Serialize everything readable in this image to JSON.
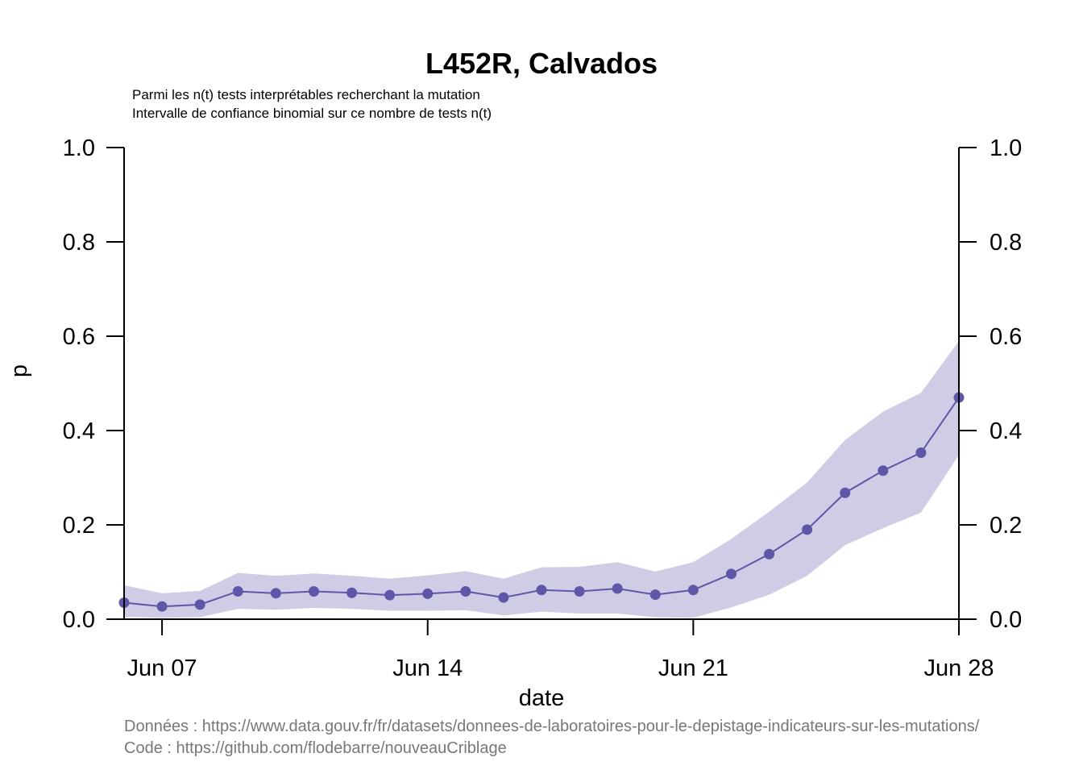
{
  "title": "L452R, Calvados",
  "subtitle_line1": "Parmi les n(t) tests interprétables recherchant la mutation",
  "subtitle_line2": "Intervalle de confiance binomial sur ce nombre de tests n(t)",
  "credit_line1": "Données : https://www.data.gouv.fr/fr/datasets/donnees-de-laboratoires-pour-le-depistage-indicateurs-sur-les-mutations/",
  "credit_line2": "Code : https://github.com/flodebarre/nouveauCriblage",
  "colors": {
    "line": "#5E57A8",
    "band": "#CFCDE5",
    "credit": "#777777"
  },
  "chart_data": {
    "type": "line",
    "title": "L452R, Calvados",
    "xlabel": "date",
    "ylabel": "p",
    "xlim": [
      "2021-06-06",
      "2021-06-28"
    ],
    "ylim": [
      0,
      1
    ],
    "x_ticks": [
      "Jun 07",
      "Jun 14",
      "Jun 21",
      "Jun 28"
    ],
    "x_tick_dates": [
      "2021-06-07",
      "2021-06-14",
      "2021-06-21",
      "2021-06-28"
    ],
    "y_ticks": [
      "0.0",
      "0.2",
      "0.4",
      "0.6",
      "0.8",
      "1.0"
    ],
    "y_tick_values": [
      0,
      0.2,
      0.4,
      0.6,
      0.8,
      1.0
    ],
    "right_axis": true,
    "grid": false,
    "series": [
      {
        "x": [
          "2021-06-06",
          "2021-06-07",
          "2021-06-08",
          "2021-06-09",
          "2021-06-10",
          "2021-06-11",
          "2021-06-12",
          "2021-06-13",
          "2021-06-14",
          "2021-06-15",
          "2021-06-16",
          "2021-06-17",
          "2021-06-18",
          "2021-06-19",
          "2021-06-20",
          "2021-06-21",
          "2021-06-22",
          "2021-06-23",
          "2021-06-24",
          "2021-06-25",
          "2021-06-26",
          "2021-06-27",
          "2021-06-28"
        ],
        "p": [
          0.035,
          0.027,
          0.031,
          0.059,
          0.055,
          0.059,
          0.056,
          0.051,
          0.054,
          0.059,
          0.046,
          0.062,
          0.059,
          0.065,
          0.052,
          0.062,
          0.096,
          0.138,
          0.19,
          0.268,
          0.315,
          0.353,
          0.47
        ],
        "lower": [
          0.005,
          0.003,
          0.004,
          0.022,
          0.02,
          0.024,
          0.022,
          0.018,
          0.018,
          0.019,
          0.008,
          0.016,
          0.012,
          0.012,
          0.004,
          0.003,
          0.025,
          0.052,
          0.092,
          0.157,
          0.193,
          0.226,
          0.348
        ],
        "upper": [
          0.072,
          0.055,
          0.06,
          0.098,
          0.092,
          0.097,
          0.092,
          0.086,
          0.093,
          0.102,
          0.086,
          0.11,
          0.111,
          0.121,
          0.101,
          0.121,
          0.17,
          0.228,
          0.29,
          0.38,
          0.44,
          0.48,
          0.59
        ]
      }
    ]
  }
}
